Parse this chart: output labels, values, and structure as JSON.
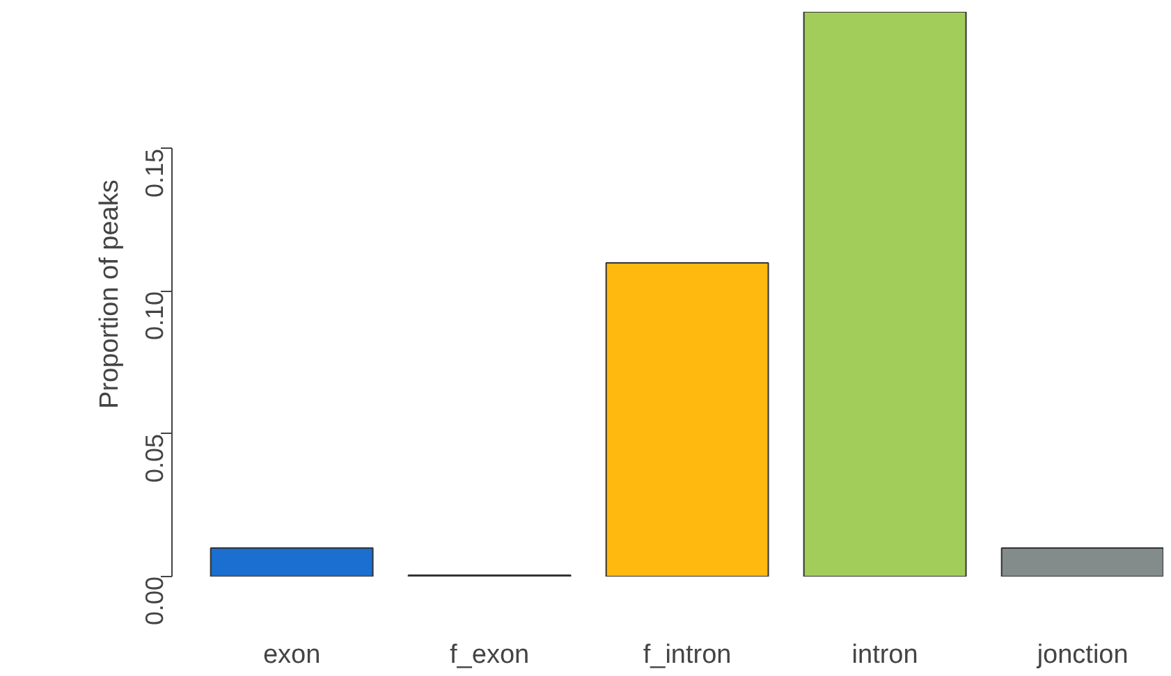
{
  "chart_data": {
    "type": "bar",
    "ylabel": "Proportion of peaks",
    "categories": [
      "exon",
      "f_exon",
      "f_intron",
      "intron",
      "jonction"
    ],
    "values": [
      0.01,
      0.0005,
      0.11,
      0.198,
      0.01
    ],
    "colors": [
      "#1a6fd0",
      "#3a3a3a",
      "#ffb90f",
      "#a2cd5a",
      "#838b8b"
    ],
    "ylim": [
      0,
      0.198
    ],
    "yticks": [
      {
        "value": 0,
        "label": "0.00"
      },
      {
        "value": 0.05,
        "label": "0.05"
      },
      {
        "value": 0.1,
        "label": "0.10"
      },
      {
        "value": 0.15,
        "label": "0.15"
      }
    ],
    "grid": false
  }
}
